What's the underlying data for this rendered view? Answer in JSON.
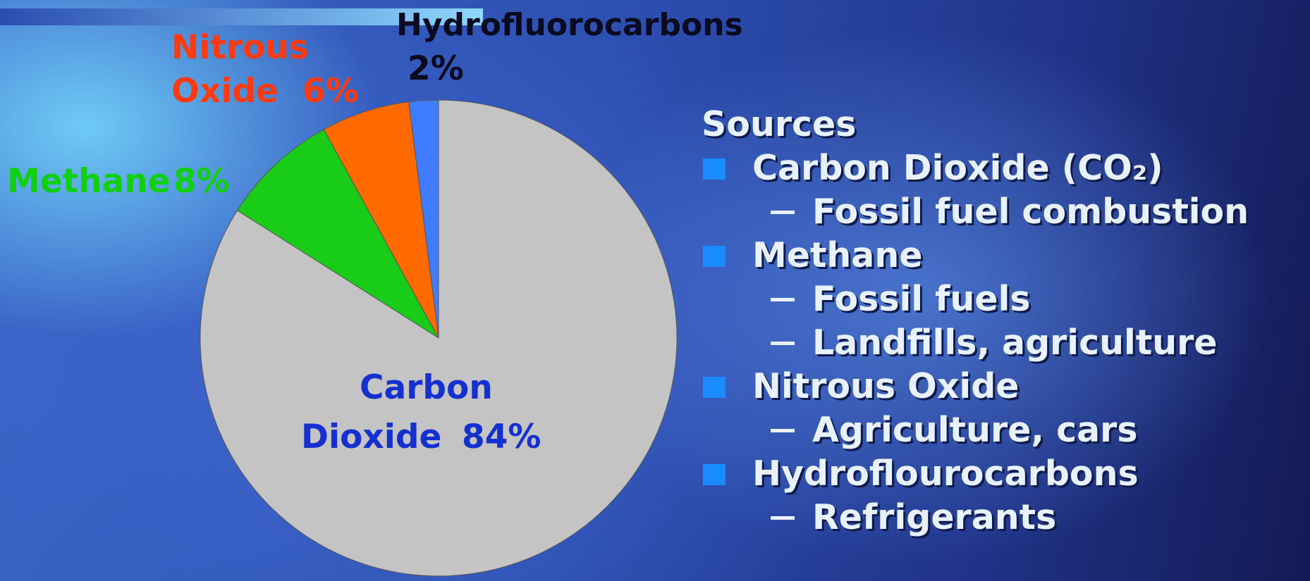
{
  "chart_data": {
    "type": "pie",
    "categories": [
      "Hydrofluorocarbons",
      "Nitrous Oxide",
      "Methane",
      "Carbon Dioxide"
    ],
    "values": [
      2,
      6,
      8,
      84
    ],
    "value_labels": [
      "2%",
      "6%",
      "8%",
      "84%"
    ],
    "colors": [
      "#3f7cff",
      "#ff6a00",
      "#18cc18",
      "#c4c4c4"
    ]
  },
  "sources": {
    "title": "Sources",
    "items": [
      {
        "text": "Carbon Dioxide (CO₂)",
        "subitems": [
          "Fossil fuel combustion"
        ]
      },
      {
        "text": "Methane",
        "subitems": [
          "Fossil fuels",
          "Landfills, agriculture"
        ]
      },
      {
        "text": "Nitrous Oxide",
        "subitems": [
          "Agriculture, cars"
        ]
      },
      {
        "text": "Hydroflourocarbons",
        "subitems": [
          "Refrigerants"
        ]
      }
    ]
  }
}
